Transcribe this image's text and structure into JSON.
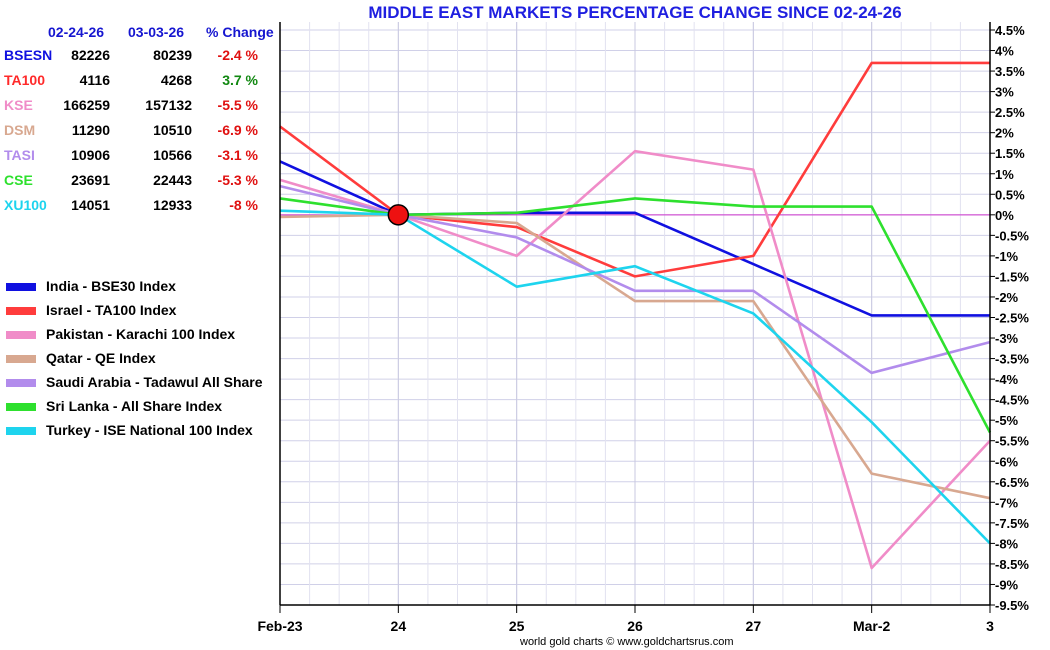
{
  "chart_data": {
    "type": "line",
    "title": "MIDDLE EAST MARKETS PERCENTAGE CHANGE SINCE 02-24-26",
    "x_labels": [
      "Feb-23",
      "24",
      "25",
      "26",
      "27",
      "Mar-2",
      "3"
    ],
    "y_ticks": [
      "4.5%",
      "4%",
      "3.5%",
      "3%",
      "2.5%",
      "2%",
      "1.5%",
      "1%",
      "0.5%",
      "0%",
      "-0.5%",
      "-1%",
      "-1.5%",
      "-2%",
      "-2.5%",
      "-3%",
      "-3.5%",
      "-4%",
      "-4.5%",
      "-5%",
      "-5.5%",
      "-6%",
      "-6.5%",
      "-7%",
      "-7.5%",
      "-8%",
      "-8.5%",
      "-9%",
      "-9.5%"
    ],
    "ylim": [
      -9.5,
      4.5
    ],
    "grid": true,
    "legend_position": "left",
    "base_marker_x": "24",
    "series": [
      {
        "name": "India - BSE30 Index",
        "color": "#1010e0",
        "values": [
          1.3,
          0,
          0.05,
          0.05,
          -1.2,
          -2.45,
          -2.45
        ]
      },
      {
        "name": "Israel - TA100 Index",
        "color": "#ff3c3c",
        "values": [
          2.15,
          0,
          -0.3,
          -1.5,
          -1.0,
          3.7,
          3.7
        ]
      },
      {
        "name": "Pakistan - Karachi 100 Index",
        "color": "#f08cc8",
        "values": [
          0.85,
          0,
          -1.0,
          1.55,
          1.1,
          -8.6,
          -5.5
        ]
      },
      {
        "name": "Qatar - QE Index",
        "color": "#d8a890",
        "values": [
          -0.05,
          0,
          -0.2,
          -2.1,
          -2.1,
          -6.3,
          -6.9
        ]
      },
      {
        "name": "Saudi Arabia - Tadawul All Share",
        "color": "#b28cec",
        "values": [
          0.7,
          0,
          -0.55,
          -1.85,
          -1.85,
          -3.85,
          -3.1
        ]
      },
      {
        "name": "Sri Lanka - All Share Index",
        "color": "#2ee02e",
        "values": [
          0.4,
          0,
          0.05,
          0.4,
          0.2,
          0.2,
          -5.3
        ]
      },
      {
        "name": "Turkey - ISE National 100 Index",
        "color": "#1ed4ee",
        "values": [
          0.1,
          0,
          -1.75,
          -1.25,
          -2.4,
          -5.05,
          -8.0
        ]
      }
    ]
  },
  "table": {
    "headers": {
      "date1": "02-24-26",
      "date2": "03-03-26",
      "change": "% Change"
    },
    "rows": [
      {
        "ticker": "BSESN",
        "v1": "82226",
        "v2": "80239",
        "change": "-2.4 %",
        "ticker_color": "#1010e0",
        "change_color": "#e01010"
      },
      {
        "ticker": "TA100",
        "v1": "4116",
        "v2": "4268",
        "change": "3.7 %",
        "ticker_color": "#ff2a2a",
        "change_color": "#118811"
      },
      {
        "ticker": "KSE",
        "v1": "166259",
        "v2": "157132",
        "change": "-5.5 %",
        "ticker_color": "#f08cc8",
        "change_color": "#e01010"
      },
      {
        "ticker": "DSM",
        "v1": "11290",
        "v2": "10510",
        "change": "-6.9 %",
        "ticker_color": "#d8a890",
        "change_color": "#e01010"
      },
      {
        "ticker": "TASI",
        "v1": "10906",
        "v2": "10566",
        "change": "-3.1 %",
        "ticker_color": "#b28cec",
        "change_color": "#e01010"
      },
      {
        "ticker": "CSE",
        "v1": "23691",
        "v2": "22443",
        "change": "-5.3 %",
        "ticker_color": "#2ee02e",
        "change_color": "#e01010"
      },
      {
        "ticker": "XU100",
        "v1": "14051",
        "v2": "12933",
        "change": "-8 %",
        "ticker_color": "#1ed4ee",
        "change_color": "#e01010"
      }
    ]
  },
  "credit": "world gold charts © www.goldchartsrus.com"
}
